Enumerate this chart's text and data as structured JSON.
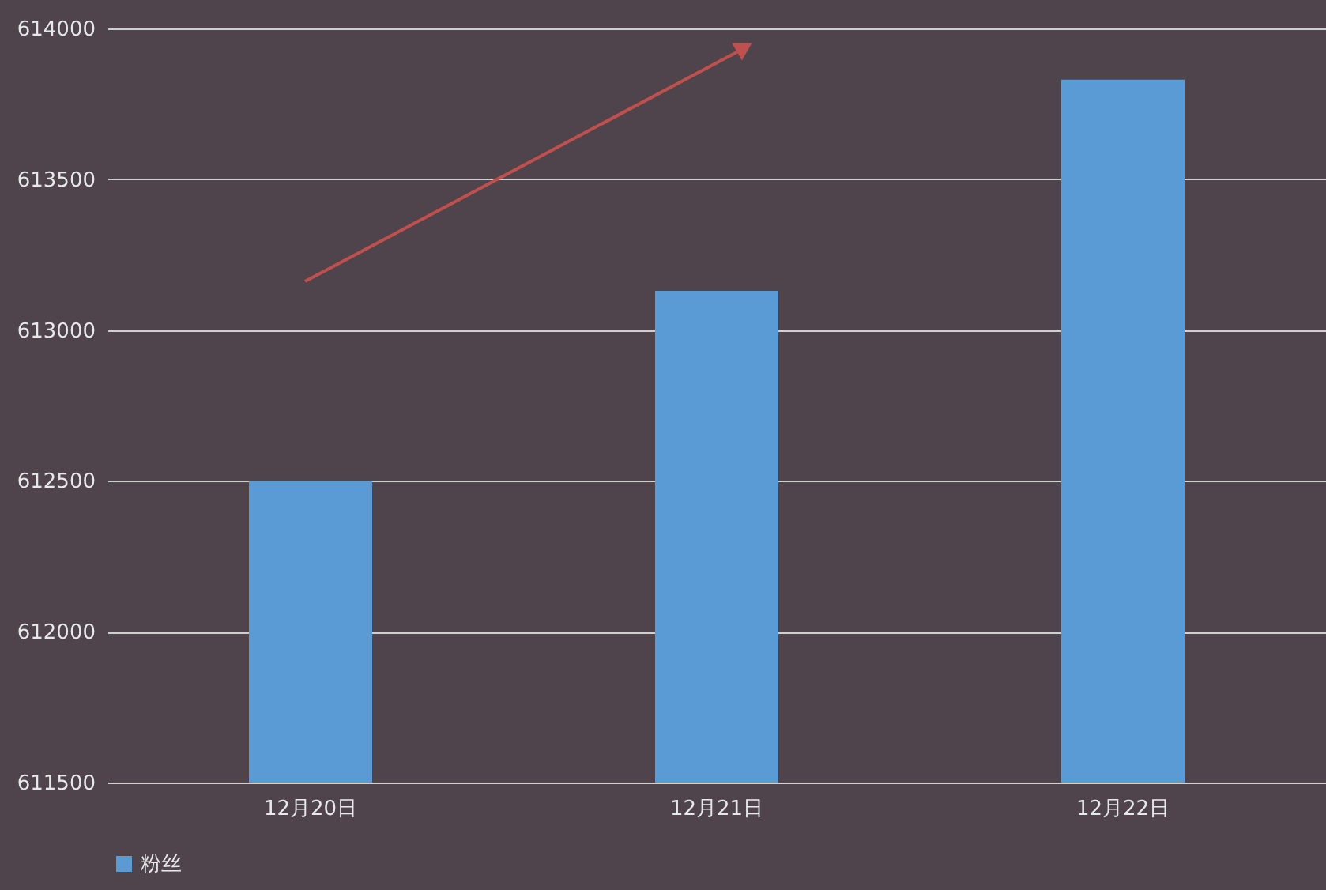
{
  "chart_data": {
    "type": "bar",
    "categories": [
      "12月20日",
      "12月21日",
      "12月22日"
    ],
    "series": [
      {
        "name": "粉丝",
        "color": "#5b9bd5",
        "values": [
          612500,
          613130,
          613830
        ]
      }
    ],
    "ylim": [
      611500,
      614000
    ],
    "yticks": [
      611500,
      612000,
      612500,
      613000,
      613500,
      614000
    ],
    "grid": "y",
    "legend": "bottom"
  }
}
